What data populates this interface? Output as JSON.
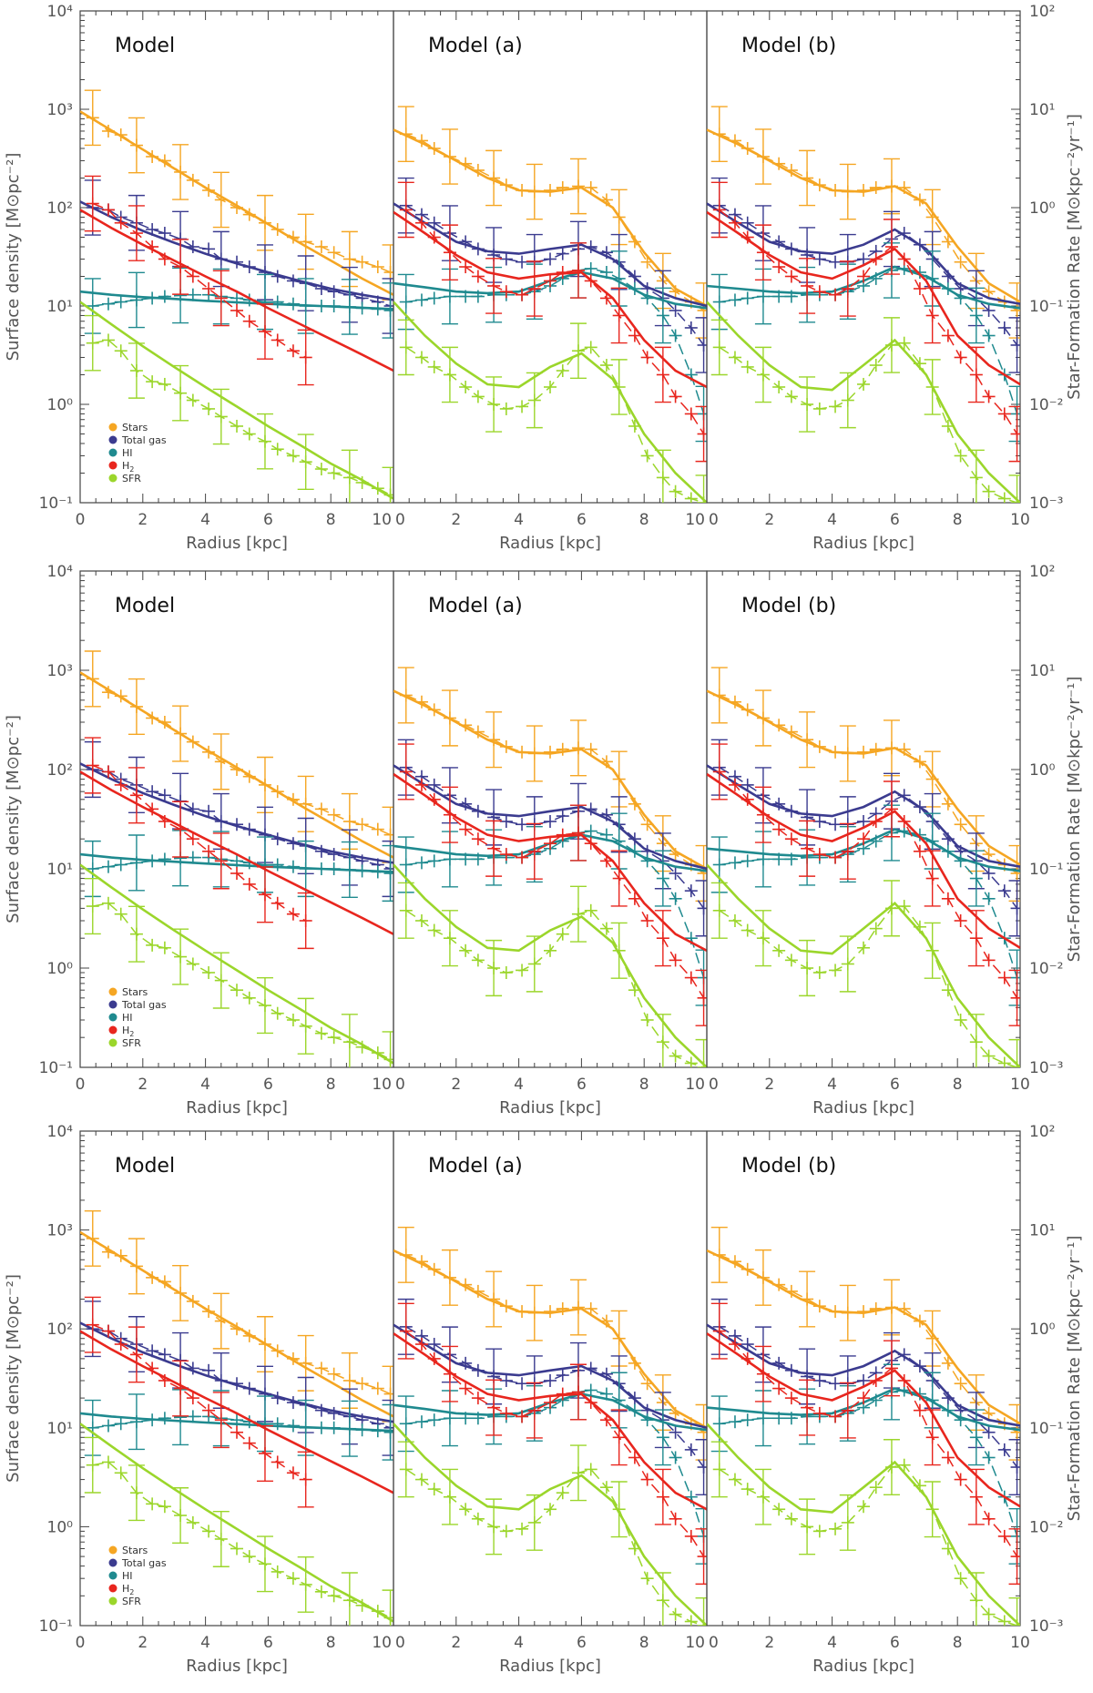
{
  "chart_data": {
    "type": "line",
    "title": "",
    "rows": 3,
    "xlabel": "Radius [kpc]",
    "ylabel_left": "Surface density [M⊙pc⁻²]",
    "ylabel_right": "Star-Formation Rate [M⊙kpc⁻²yr⁻¹]",
    "xlim": [
      0,
      10
    ],
    "ylim_left": [
      0.1,
      10000
    ],
    "ylim_right": [
      0.001,
      100
    ],
    "yscale": "log",
    "x_ticks": [
      "0",
      "2",
      "4",
      "6",
      "8",
      "10"
    ],
    "y_ticks_left": [
      "10⁻¹",
      "10⁰",
      "10¹",
      "10²",
      "10³",
      "10⁴"
    ],
    "y_ticks_right": [
      "10⁻³",
      "10⁻²",
      "10⁻¹",
      "10⁰",
      "10¹",
      "10²"
    ],
    "panel_titles": [
      "Model",
      "Model (a)",
      "Model (b)"
    ],
    "legend": [
      "Stars",
      "Total gas",
      "HI",
      "H2",
      "SFR"
    ],
    "colors": {
      "Stars": "#f5a623",
      "Total gas": "#3b3b8f",
      "HI": "#1f8a8f",
      "H2": "#e8261e",
      "SFR": "#9bd62b"
    },
    "series_order": [
      "Stars",
      "Total gas",
      "HI",
      "H2",
      "SFR"
    ],
    "model_x": [
      0,
      1,
      2,
      3,
      4,
      5,
      6,
      7,
      8,
      9,
      10
    ],
    "obs_x": [
      0.4,
      0.9,
      1.3,
      1.8,
      2.3,
      2.7,
      3.2,
      3.6,
      4.1,
      4.5,
      5.0,
      5.4,
      5.9,
      6.3,
      6.8,
      7.2,
      7.7,
      8.1,
      8.6,
      9.0,
      9.5,
      9.9
    ],
    "panels": [
      {
        "title": "Model",
        "model": {
          "Stars": [
            950,
            610,
            390,
            250,
            160,
            105,
            68,
            44,
            29,
            19,
            13
          ],
          "Total gas": [
            115,
            80,
            58,
            44,
            34,
            27,
            22,
            18,
            15,
            13,
            11.5
          ],
          "HI": [
            14,
            13,
            12.3,
            11.8,
            11.3,
            10.9,
            10.5,
            10.2,
            9.9,
            9.6,
            9.3
          ],
          "H2": [
            95,
            62,
            42,
            29,
            20,
            14,
            9.5,
            6.6,
            4.6,
            3.2,
            2.2
          ],
          "SFR": [
            11,
            6.5,
            3.9,
            2.4,
            1.5,
            0.95,
            0.6,
            0.39,
            0.25,
            0.17,
            0.11
          ]
        },
        "obs": {
          "Stars": [
            820,
            600,
            550,
            430,
            330,
            300,
            230,
            190,
            150,
            120,
            100,
            85,
            70,
            60,
            50,
            45,
            40,
            35,
            30,
            28,
            25,
            22
          ],
          "Total gas": [
            100,
            95,
            80,
            70,
            60,
            55,
            48,
            40,
            38,
            30,
            28,
            25,
            22,
            20,
            18,
            17,
            15,
            14,
            13,
            12,
            11,
            10
          ],
          "HI": [
            10,
            10.5,
            11,
            11.5,
            12,
            12.5,
            12.8,
            13,
            13,
            12.5,
            12,
            11.5,
            11,
            11,
            10.5,
            10,
            10,
            10,
            9.8,
            9.5,
            9.3,
            9
          ],
          "H2": [
            110,
            95,
            70,
            55,
            40,
            30,
            25,
            20,
            15,
            12,
            9,
            7,
            5.5,
            4.5,
            3.5,
            3.0
          ],
          "SFR": [
            4.2,
            4.5,
            3.5,
            2.2,
            1.7,
            1.6,
            1.3,
            1.1,
            0.9,
            0.75,
            0.6,
            0.5,
            0.42,
            0.35,
            0.3,
            0.26,
            0.22,
            0.2,
            0.18,
            0.16,
            0.14,
            0.12
          ]
        }
      },
      {
        "title": "Model (a)",
        "model": {
          "Stars": [
            620,
            440,
            300,
            200,
            150,
            145,
            160,
            100,
            35,
            15,
            10
          ],
          "Total gas": [
            110,
            70,
            45,
            36,
            34,
            38,
            42,
            30,
            16,
            12,
            10
          ],
          "HI": [
            17,
            15.5,
            14,
            13.5,
            14,
            18,
            22,
            19,
            13,
            10.5,
            9.5
          ],
          "H2": [
            90,
            55,
            33,
            22,
            19,
            21,
            22,
            12,
            4.5,
            2.2,
            1.5
          ],
          "SFR": [
            11,
            5,
            2.6,
            1.6,
            1.5,
            2.4,
            3.3,
            1.8,
            0.5,
            0.2,
            0.1
          ]
        },
        "obs": {
          "Stars": [
            560,
            480,
            400,
            330,
            280,
            240,
            200,
            170,
            150,
            145,
            150,
            160,
            165,
            160,
            120,
            80,
            45,
            28,
            18,
            14,
            11,
            9
          ],
          "Total gas": [
            105,
            85,
            70,
            55,
            45,
            38,
            33,
            30,
            28,
            28,
            30,
            34,
            38,
            40,
            35,
            28,
            20,
            15,
            12,
            9,
            6,
            4
          ],
          "HI": [
            11,
            11.5,
            12,
            12.5,
            12.5,
            12.5,
            13,
            13,
            13,
            14,
            16,
            19,
            23,
            24,
            22,
            19,
            15,
            12,
            8,
            5,
            2,
            0.8
          ],
          "H2": [
            95,
            70,
            50,
            35,
            25,
            20,
            16,
            14,
            13,
            15,
            18,
            22,
            23,
            18,
            12,
            8,
            5,
            3,
            2,
            1.2,
            0.8,
            0.5
          ],
          "SFR": [
            3.8,
            3.0,
            2.4,
            2.0,
            1.5,
            1.2,
            1.0,
            0.9,
            0.95,
            1.1,
            1.5,
            2.2,
            3.5,
            3.8,
            2.5,
            1.5,
            0.6,
            0.3,
            0.18,
            0.13,
            0.11,
            0.1
          ]
        }
      },
      {
        "title": "Model (b)",
        "model": {
          "Stars": [
            620,
            440,
            300,
            200,
            150,
            145,
            165,
            110,
            40,
            17,
            11
          ],
          "Total gas": [
            110,
            70,
            45,
            36,
            34,
            42,
            60,
            38,
            17,
            12,
            10.5
          ],
          "HI": [
            16,
            15,
            14,
            13.5,
            14,
            18,
            25,
            20,
            13,
            10.5,
            9.5
          ],
          "H2": [
            90,
            55,
            33,
            22,
            19,
            26,
            38,
            18,
            5,
            2.5,
            1.6
          ],
          "SFR": [
            11,
            5,
            2.5,
            1.5,
            1.4,
            2.5,
            4.5,
            2.0,
            0.5,
            0.2,
            0.1
          ]
        },
        "obs": {
          "Stars": [
            560,
            480,
            400,
            330,
            280,
            240,
            200,
            170,
            150,
            145,
            150,
            160,
            165,
            160,
            120,
            80,
            45,
            28,
            18,
            14,
            11,
            9
          ],
          "Total gas": [
            105,
            85,
            70,
            55,
            45,
            38,
            33,
            30,
            28,
            28,
            30,
            36,
            48,
            55,
            42,
            30,
            20,
            15,
            12,
            9,
            6,
            4
          ],
          "HI": [
            11,
            11.5,
            12,
            12.5,
            12.5,
            12.5,
            13,
            13,
            13,
            14,
            16,
            19,
            23,
            24,
            22,
            19,
            15,
            12,
            8,
            5,
            2,
            0.8
          ],
          "H2": [
            95,
            70,
            50,
            35,
            25,
            20,
            16,
            14,
            13,
            15,
            20,
            30,
            40,
            30,
            15,
            8,
            5,
            3,
            2,
            1.2,
            0.8,
            0.5
          ],
          "SFR": [
            3.8,
            3.0,
            2.4,
            2.0,
            1.5,
            1.2,
            1.0,
            0.9,
            0.95,
            1.1,
            1.6,
            2.5,
            4.0,
            4.2,
            2.6,
            1.5,
            0.6,
            0.3,
            0.18,
            0.13,
            0.11,
            0.1
          ]
        }
      }
    ]
  }
}
